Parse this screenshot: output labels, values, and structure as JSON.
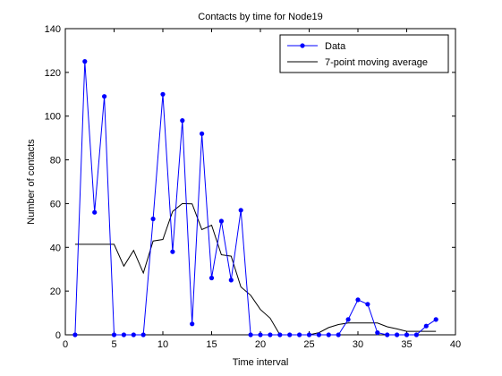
{
  "chart_data": {
    "type": "line",
    "title": "Contacts by time for Node19",
    "xlabel": "Time interval",
    "ylabel": "Number of contacts",
    "xlim": [
      0,
      40
    ],
    "ylim": [
      0,
      140
    ],
    "xticks": [
      0,
      5,
      10,
      15,
      20,
      25,
      30,
      35,
      40
    ],
    "yticks": [
      0,
      20,
      40,
      60,
      80,
      100,
      120,
      140
    ],
    "grid": false,
    "legend_position": "top-right",
    "series": [
      {
        "name": "Data",
        "color": "#0000ff",
        "marker": "dot",
        "x": [
          1,
          2,
          3,
          4,
          5,
          6,
          7,
          8,
          9,
          10,
          11,
          12,
          13,
          14,
          15,
          16,
          17,
          18,
          19,
          20,
          21,
          22,
          23,
          24,
          25,
          26,
          27,
          28,
          29,
          30,
          31,
          32,
          33,
          34,
          35,
          36,
          37,
          38
        ],
        "values": [
          0,
          125,
          56,
          109,
          0,
          0,
          0,
          0,
          53,
          110,
          38,
          98,
          5,
          92,
          26,
          52,
          25,
          57,
          0,
          0,
          0,
          0,
          0,
          0,
          0,
          0,
          0,
          0,
          7,
          16,
          14,
          1,
          0,
          0,
          0,
          0,
          4,
          7
        ]
      },
      {
        "name": "7-point moving average",
        "color": "#000000",
        "marker": "none",
        "x": [
          1,
          2,
          3,
          4,
          5,
          6,
          7,
          8,
          9,
          10,
          11,
          12,
          13,
          14,
          15,
          16,
          17,
          18,
          19,
          20,
          21,
          22,
          23,
          24,
          25,
          26,
          27,
          28,
          29,
          30,
          31,
          32,
          33,
          34,
          35,
          36,
          37,
          38
        ],
        "values": [
          41.4,
          41.4,
          41.4,
          41.4,
          41.4,
          31.4,
          38.6,
          28.3,
          42.9,
          43.6,
          56.4,
          60.0,
          59.9,
          48.1,
          50.1,
          36.6,
          36.0,
          21.9,
          18.1,
          11.6,
          7.6,
          0,
          0,
          0,
          0,
          1.0,
          3.3,
          4.7,
          5.4,
          5.4,
          5.4,
          5.4,
          3.7,
          2.7,
          1.6,
          1.6,
          1.6,
          1.6
        ]
      }
    ]
  }
}
